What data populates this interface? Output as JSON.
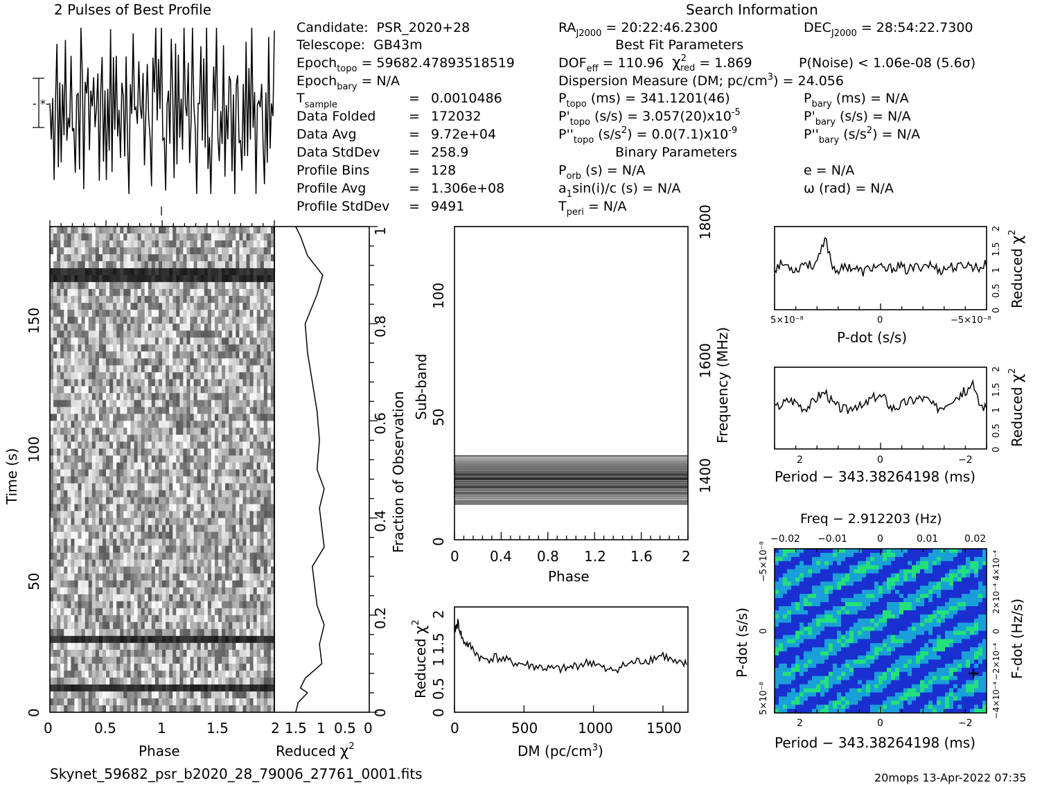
{
  "title_profile": "2 Pulses of Best Profile",
  "title_search": "Search Information",
  "filename": "Skynet_59682_psr_b2020_28_79006_27761_0001.fits",
  "footer_stamp": "20mops 13-Apr-2022 07:35",
  "info_left": [
    {
      "label": "Candidate:",
      "value": "PSR_2020+28"
    },
    {
      "label": "Telescope:",
      "value": "GB43m"
    },
    {
      "label": "Epoch",
      "sub": "topo",
      "value": "= 59682.47893518519"
    },
    {
      "label": "Epoch",
      "sub": "bary",
      "value": "= N/A"
    },
    {
      "label": "T",
      "sub": "sample",
      "value": "0.0010486"
    },
    {
      "label": "Data Folded",
      "value": "172032"
    },
    {
      "label": "Data Avg",
      "value": "9.72e+04"
    },
    {
      "label": "Data StdDev",
      "value": "258.9"
    },
    {
      "label": "Profile Bins",
      "value": "128"
    },
    {
      "label": "Profile Avg",
      "value": "1.306e+08"
    },
    {
      "label": "Profile StdDev",
      "value": "9491"
    }
  ],
  "info_mid": {
    "ra": "RA",
    "ra_sub": "J2000",
    "ra_val": "= 20:22:46.2300",
    "dec": "DEC",
    "dec_sub": "J2000",
    "dec_val": "= 28:54:22.7300",
    "best_fit": "Best Fit Parameters",
    "dof": "DOF",
    "dof_sub": "eff",
    "dof_val": "= 110.96",
    "chi": "χ",
    "chi_sub": "red",
    "chi_val": "= 1.869",
    "pnoise": "P(Noise) < 1.06e-08   (5.6σ)",
    "dm_line": "Dispersion Measure (DM; pc/cm",
    "dm_val": ") = 24.056",
    "ptopo": "P",
    "ptopo_sub": "topo",
    "ptopo_val": "(ms) =  341.1201(46)",
    "pbary_val": "(ms) = N/A",
    "pdtopo_val": "(s/s) =  3.057(20)x10",
    "pdtopo_exp": "-5",
    "pdbary_val": "(s/s) = N/A",
    "pddtopo_val": "(s/s",
    "pddtopo_val2": ") = 0.0(7.1)x10",
    "pddtopo_exp": "-9",
    "pddbary_val": "(s/s",
    "pddbary_val2": ") = N/A",
    "binary": "Binary Parameters",
    "porb": "P",
    "porb_sub": "orb",
    "porb_val": "(s) = N/A",
    "a1": "a",
    "a1_sub": "1",
    "a1_val": "sin(i)/c (s) = N/A",
    "tperi": "T",
    "tperi_sub": "peri",
    "tperi_val": "= N/A",
    "e_val": "e = N/A",
    "omega_val": "ω (rad) = N/A"
  },
  "eq_signs": [
    "=",
    "=",
    "=",
    "=",
    "=",
    "=",
    "="
  ],
  "labels": {
    "phase": "Phase",
    "time": "Time (s)",
    "reduced": "Reduced",
    "chi2": "χ",
    "two": "2",
    "frac_obs": "Fraction of Observation",
    "subband": "Sub-band",
    "frequency": "Frequency (MHz)",
    "dm": "DM (pc/cm",
    "dm_close": ")",
    "three": "3",
    "pdot": "P-dot (s/s)",
    "period": "Period − 343.38264198 (ms)",
    "freq": "Freq − 2.912203 (Hz)",
    "fdot": "F-dot (Hz/s)"
  },
  "axes": {
    "time_ticks": [
      "0",
      "50",
      "100",
      "150"
    ],
    "phase_ticks": [
      "0",
      "0.5",
      "1",
      "1.5",
      "2"
    ],
    "redchi_ticks": [
      "1.5",
      "1",
      "0.5",
      "0"
    ],
    "frac_ticks": [
      "0",
      "0.2",
      "0.4",
      "0.6",
      "0.8",
      "1"
    ],
    "subband_ticks": [
      "0",
      "50",
      "100"
    ],
    "subphase_ticks": [
      "0",
      "0.4",
      "0.8",
      "1.2",
      "1.6",
      "2"
    ],
    "freq_ticks": [
      "1400",
      "1600",
      "1800"
    ],
    "dm_ticks": [
      "0",
      "500",
      "1000",
      "1500"
    ],
    "dm_chi_ticks": [
      "0",
      "0.5",
      "1",
      "1.5",
      "2"
    ],
    "pd_chi_ticks": [
      "0",
      "0.5",
      "1",
      "1.5",
      "2"
    ],
    "pdot_x_ticks": [
      "5×10⁻⁸",
      "0",
      "−5×10⁻⁸"
    ],
    "period_x_ticks": [
      "2",
      "0",
      "−2"
    ],
    "freq_top_ticks": [
      "−0.02",
      "−0.01",
      "0",
      "0.01",
      "0.02"
    ],
    "pdot_y_ticks": [
      "−5×10⁻⁸",
      "0",
      "5×10⁻⁸"
    ],
    "fdot_ticks": [
      "4×10⁻⁴",
      "2×10⁻⁴",
      "0",
      "−2×10⁻⁴",
      "−4×10⁻⁴"
    ]
  },
  "colors": {
    "map_low": "#1a2fd0",
    "map_mid": "#1aa0d8",
    "map_high": "#22e07a"
  },
  "chart_data": [
    {
      "type": "line",
      "title": "2 Pulses of Best Profile",
      "x": "phase 0-2",
      "xlim": [
        0,
        2
      ],
      "series": [
        {
          "name": "",
          "values": [
            0.55,
            0.3,
            0.75,
            0.2,
            0.6,
            0.9,
            0.35,
            0.5,
            0.15,
            0.7,
            0.45,
            0.8,
            0.25,
            0.65,
            0.4,
            0.95,
            0.3,
            0.55,
            0.1,
            0.6,
            0.75,
            0.35,
            0.85,
            0.5,
            0.2,
            0.7,
            0.4,
            0.9,
            0.3,
            0.6,
            0.45,
            0.8,
            0.55,
            0.3,
            0.75,
            0.2,
            0.6,
            0.9,
            0.35,
            0.5,
            0.15,
            0.7,
            0.45,
            0.8,
            0.25,
            0.65,
            0.4,
            0.95,
            0.3,
            0.55,
            0.1,
            0.6,
            0.75,
            0.35,
            0.85,
            0.5,
            0.2,
            0.7,
            0.4,
            0.9,
            0.3,
            0.6,
            0.45,
            0.8
          ]
        }
      ]
    },
    {
      "type": "heatmap",
      "xlabel": "Phase",
      "ylabel": "Time (s)",
      "xlim": [
        0,
        2
      ],
      "ylim": [
        0,
        180
      ],
      "dark_bands_time_s": [
        9,
        27,
        162
      ]
    },
    {
      "type": "line",
      "xlabel": "Reduced χ²",
      "ylabel": "Fraction of Observation",
      "xlim": [
        2,
        0
      ],
      "ylim": [
        0,
        1
      ],
      "x": [
        1.55,
        1.45,
        1.3,
        0.98,
        1.1,
        1.35,
        1.3,
        1.2,
        1.1,
        1.05,
        1.1,
        0.95,
        1.05,
        1.0,
        0.95,
        1.2,
        1.15,
        1.1,
        0.95,
        1.05,
        1.0,
        1.35,
        1.45,
        1.3,
        1.4,
        1.5,
        1.55
      ],
      "y": [
        1.0,
        0.98,
        0.94,
        0.9,
        0.86,
        0.8,
        0.74,
        0.68,
        0.62,
        0.56,
        0.5,
        0.46,
        0.42,
        0.38,
        0.34,
        0.3,
        0.26,
        0.22,
        0.18,
        0.14,
        0.1,
        0.07,
        0.05,
        0.04,
        0.03,
        0.02,
        0.0
      ]
    },
    {
      "type": "heatmap",
      "xlabel": "Phase",
      "ylabel": "Sub-band",
      "y2label": "Frequency (MHz)",
      "xlim": [
        0,
        2
      ],
      "ylim": [
        0,
        128
      ],
      "active_subbands": [
        14,
        35
      ]
    },
    {
      "type": "line",
      "xlabel": "DM (pc/cm³)",
      "ylabel": "Reduced χ²",
      "xlim": [
        0,
        1680
      ],
      "ylim": [
        0,
        2.2
      ],
      "x": [
        0,
        24,
        60,
        120,
        200,
        300,
        400,
        500,
        600,
        700,
        800,
        900,
        1000,
        1100,
        1200,
        1300,
        1400,
        1500,
        1600,
        1680
      ],
      "y": [
        1.7,
        1.87,
        1.5,
        1.35,
        1.1,
        1.15,
        1.05,
        1.0,
        0.95,
        0.9,
        0.9,
        1.0,
        1.05,
        0.85,
        0.95,
        1.05,
        1.1,
        1.2,
        1.0,
        1.0
      ]
    },
    {
      "type": "line",
      "xlabel": "P-dot (s/s)",
      "ylabel": "Reduced χ²",
      "ylim": [
        0,
        2
      ],
      "x_range_s_per_s": [
        5e-08,
        -5e-08
      ],
      "series": [
        {
          "name": "",
          "values": [
            1.0,
            1.1,
            1.05,
            0.95,
            1.15,
            1.05,
            1.2,
            1.7,
            1.0,
            0.95,
            1.05,
            1.0,
            0.9,
            1.0,
            1.05,
            0.95,
            1.0,
            1.05,
            0.95,
            1.0,
            1.05,
            1.1,
            1.0,
            0.95,
            1.05,
            1.0,
            1.1,
            1.05,
            1.0,
            1.1
          ]
        }
      ]
    },
    {
      "type": "line",
      "xlabel": "Period − 343.38264198 (ms)",
      "ylabel": "Reduced χ²",
      "ylim": [
        0,
        2
      ],
      "x_range_ms": [
        2.5,
        -2.5
      ],
      "series": [
        {
          "name": "",
          "values": [
            1.0,
            1.1,
            1.2,
            1.15,
            1.0,
            1.1,
            1.3,
            1.4,
            1.1,
            1.0,
            0.95,
            1.1,
            1.0,
            1.2,
            1.3,
            1.25,
            1.0,
            1.05,
            1.15,
            1.2,
            1.25,
            1.2,
            1.0,
            1.05,
            1.2,
            1.3,
            1.4,
            1.6,
            1.1,
            1.0
          ]
        }
      ]
    },
    {
      "type": "heatmap",
      "xlabel": "Period − 343.38264198 (ms)",
      "ylabel": "P-dot (s/s)",
      "x2label": "Freq − 2.912203 (Hz)",
      "y2label": "F-dot (Hz/s)",
      "x_range_ms": [
        2.5,
        -2.5
      ],
      "best_point_ms": -2.3
    }
  ]
}
